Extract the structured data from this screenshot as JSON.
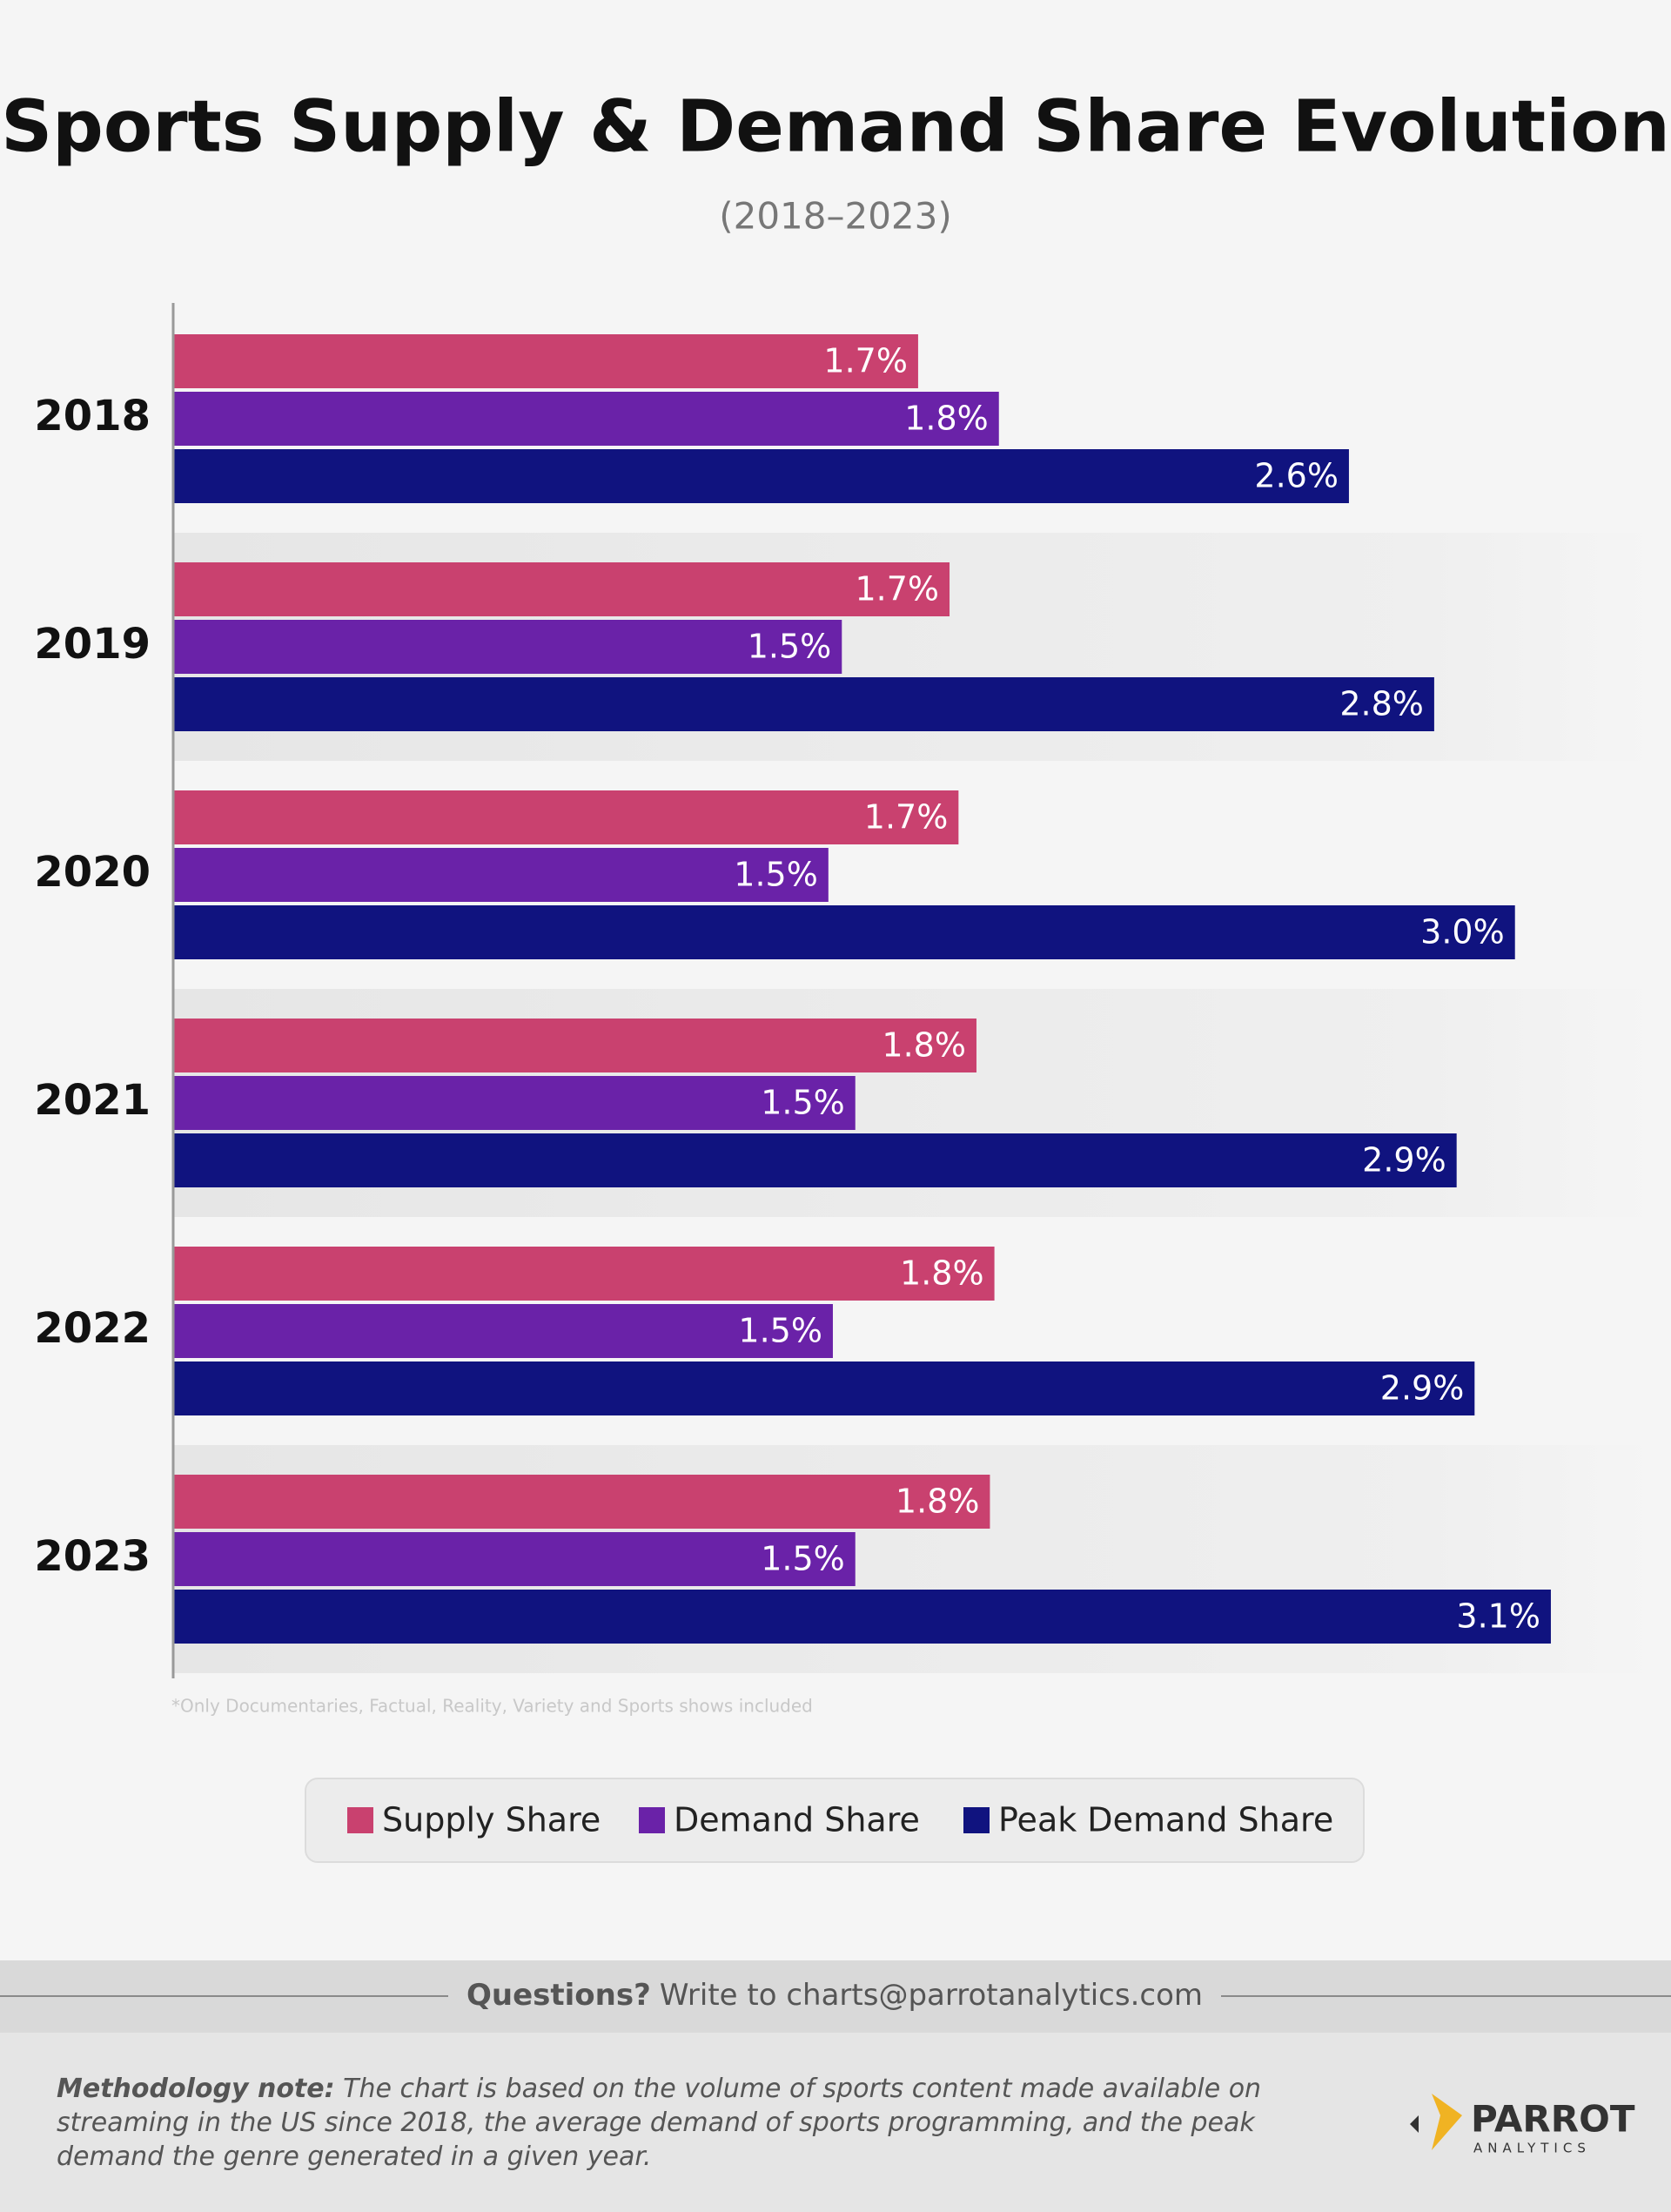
{
  "chart_data": {
    "type": "bar",
    "orientation": "horizontal",
    "title": "Sports Supply & Demand Share Evolution",
    "subtitle": "(2018–2023)",
    "categories": [
      "2018",
      "2019",
      "2020",
      "2021",
      "2022",
      "2023"
    ],
    "series": [
      {
        "name": "Supply Share",
        "color": "#c9416f",
        "values": [
          1.66,
          1.73,
          1.75,
          1.79,
          1.83,
          1.82
        ],
        "value_labels": [
          "1.7%",
          "1.7%",
          "1.7%",
          "1.8%",
          "1.8%",
          "1.8%"
        ]
      },
      {
        "name": "Demand Share",
        "color": "#6a22a8",
        "values": [
          1.84,
          1.49,
          1.46,
          1.52,
          1.47,
          1.52
        ],
        "value_labels": [
          "1.8%",
          "1.5%",
          "1.5%",
          "1.5%",
          "1.5%",
          "1.5%"
        ]
      },
      {
        "name": "Peak Demand Share",
        "color": "#10137f",
        "values": [
          2.62,
          2.81,
          2.99,
          2.86,
          2.9,
          3.07
        ],
        "value_labels": [
          "2.6%",
          "2.8%",
          "3.0%",
          "2.9%",
          "2.9%",
          "3.1%"
        ]
      }
    ],
    "xlim": [
      0,
      3.2
    ],
    "footnote": "*Only Documentaries, Factual, Reality, Variety and Sports shows included"
  },
  "footer": {
    "questions_label": "Questions?",
    "questions_text": "Write to charts@parrotanalytics.com",
    "methodology_label": "Methodology note:",
    "methodology_text": "The chart is based on the volume of sports content made available on streaming in the US since 2018, the average demand of sports programming, and the peak demand the genre generated in a given year.",
    "logo": "PARROT",
    "logo_sub": "ANALYTICS"
  }
}
